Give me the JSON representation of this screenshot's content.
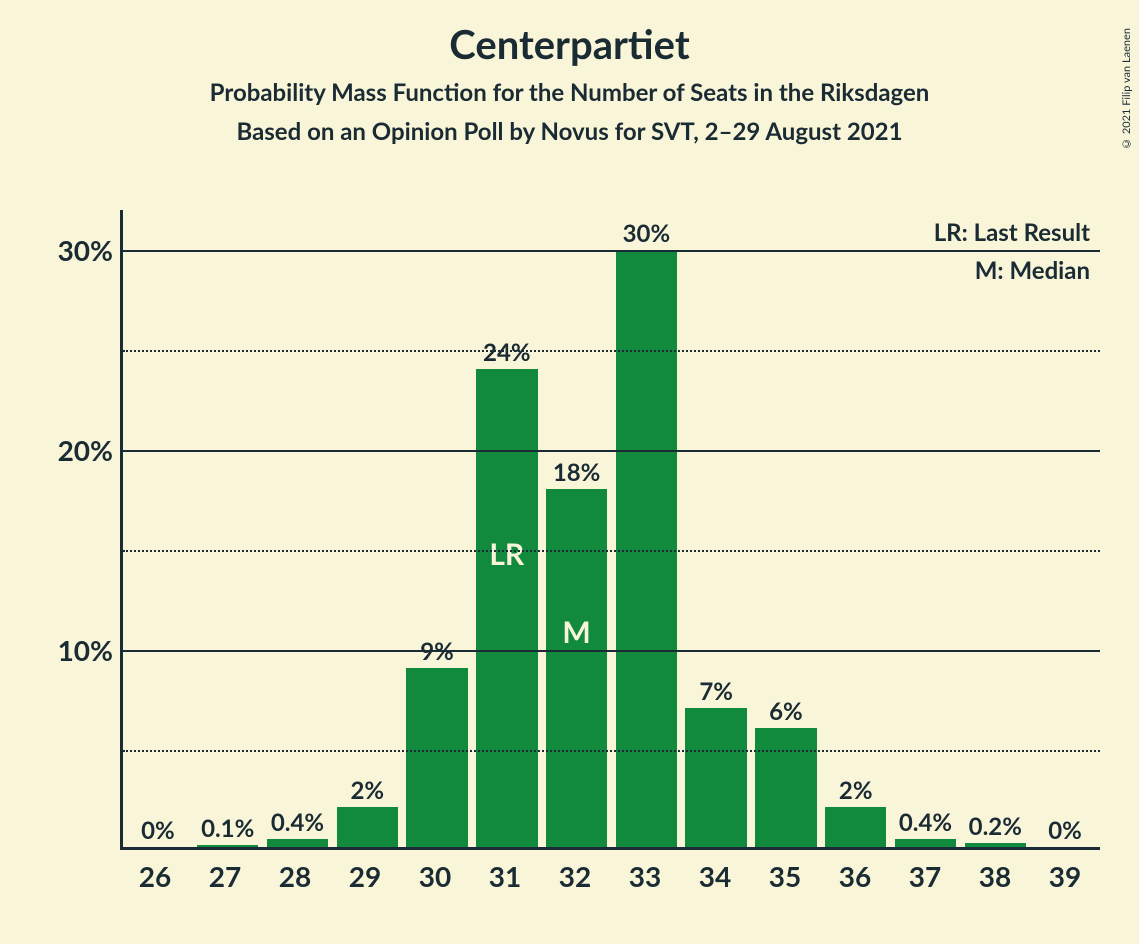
{
  "title": "Centerpartiet",
  "subtitle1": "Probability Mass Function for the Number of Seats in the Riksdagen",
  "subtitle2": "Based on an Opinion Poll by Novus for SVT, 2–29 August 2021",
  "copyright": "© 2021 Filip van Laenen",
  "legend": {
    "lr": "LR: Last Result",
    "m": "M: Median"
  },
  "chart": {
    "type": "bar",
    "background_color": "#f9f5d9",
    "bar_color": "#118a3d",
    "axis_color": "#1a2b33",
    "text_color": "#1a2b33",
    "marker_text_color": "#f9f5d9",
    "title_fontsize": 40,
    "subtitle_fontsize": 24,
    "tick_fontsize": 28,
    "barlabel_fontsize": 24,
    "ymax": 32,
    "ymin": 0,
    "major_gridlines": [
      10,
      20,
      30
    ],
    "minor_gridlines": [
      5,
      15,
      25
    ],
    "ytick_labels": {
      "10": "10%",
      "20": "20%",
      "30": "30%"
    },
    "bar_width_ratio": 0.88,
    "categories": [
      26,
      27,
      28,
      29,
      30,
      31,
      32,
      33,
      34,
      35,
      36,
      37,
      38,
      39
    ],
    "values": [
      0,
      0.1,
      0.4,
      2,
      9,
      24,
      18,
      30,
      7,
      6,
      2,
      0.4,
      0.2,
      0
    ],
    "value_labels": [
      "0%",
      "0.1%",
      "0.4%",
      "2%",
      "9%",
      "24%",
      "18%",
      "30%",
      "7%",
      "6%",
      "2%",
      "0.4%",
      "0.2%",
      "0%"
    ],
    "markers": {
      "31": "LR",
      "32": "M"
    }
  }
}
